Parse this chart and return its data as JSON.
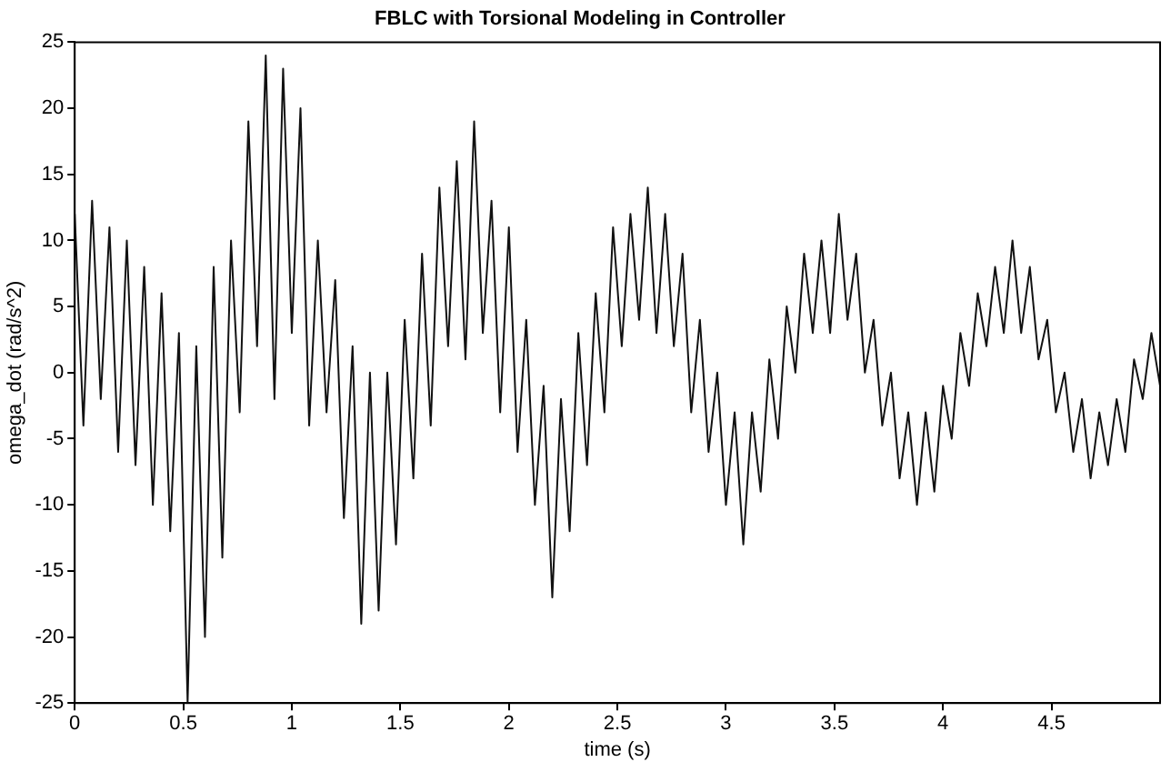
{
  "chart_data": {
    "type": "line",
    "title": "FBLC with Torsional Modeling in Controller",
    "xlabel": "time (s)",
    "ylabel": "omega_dot (rad/s^2)",
    "x": [
      0,
      0.04,
      0.08,
      0.12,
      0.16,
      0.2,
      0.24,
      0.28,
      0.32,
      0.36,
      0.4,
      0.44,
      0.48,
      0.52,
      0.56,
      0.6,
      0.64,
      0.68,
      0.72,
      0.76,
      0.8,
      0.84,
      0.88,
      0.92,
      0.96,
      1,
      1.04,
      1.08,
      1.12,
      1.16,
      1.2,
      1.24,
      1.28,
      1.32,
      1.36,
      1.4,
      1.44,
      1.48,
      1.52,
      1.56,
      1.6,
      1.64,
      1.68,
      1.72,
      1.76,
      1.8,
      1.84,
      1.88,
      1.92,
      1.96,
      2,
      2.04,
      2.08,
      2.12,
      2.16,
      2.2,
      2.24,
      2.28,
      2.32,
      2.36,
      2.4,
      2.44,
      2.48,
      2.52,
      2.56,
      2.6,
      2.64,
      2.68,
      2.72,
      2.76,
      2.8,
      2.84,
      2.88,
      2.92,
      2.96,
      3,
      3.04,
      3.08,
      3.12,
      3.16,
      3.2,
      3.24,
      3.28,
      3.32,
      3.36,
      3.4,
      3.44,
      3.48,
      3.52,
      3.56,
      3.6,
      3.64,
      3.68,
      3.72,
      3.76,
      3.8,
      3.84,
      3.88,
      3.92,
      3.96,
      4,
      4.04,
      4.08,
      4.12,
      4.16,
      4.2,
      4.24,
      4.28,
      4.32,
      4.36,
      4.4,
      4.44,
      4.48,
      4.52,
      4.56,
      4.6,
      4.64,
      4.68,
      4.72,
      4.76,
      4.8,
      4.84,
      4.88,
      4.92,
      4.96,
      5
    ],
    "series": [
      {
        "color": "#111111",
        "values": [
          12,
          -4,
          13,
          -2,
          11,
          -6,
          10,
          -7,
          8,
          -10,
          6,
          -12,
          3,
          -25,
          2,
          -20,
          8,
          -14,
          10,
          -3,
          19,
          2,
          24,
          -2,
          23,
          3,
          20,
          -4,
          10,
          -3,
          7,
          -11,
          2,
          -19,
          0,
          -18,
          0,
          -13,
          4,
          -8,
          9,
          -4,
          14,
          2,
          16,
          1,
          19,
          3,
          13,
          -3,
          11,
          -6,
          4,
          -10,
          -1,
          -17,
          -2,
          -12,
          3,
          -7,
          6,
          -3,
          11,
          2,
          12,
          4,
          14,
          3,
          12,
          2,
          9,
          -3,
          4,
          -6,
          0,
          -10,
          -3,
          -13,
          -3,
          -9,
          1,
          -5,
          5,
          0,
          9,
          3,
          10,
          3,
          12,
          4,
          9,
          0,
          4,
          -4,
          0,
          -8,
          -3,
          -10,
          -3,
          -9,
          -1,
          -5,
          3,
          -1,
          6,
          2,
          8,
          3,
          10,
          3,
          8,
          1,
          4,
          -3,
          0,
          -6,
          -2,
          -8,
          -3,
          -7,
          -2,
          -6,
          1,
          -2,
          3,
          -1
        ]
      }
    ],
    "xlim": [
      0,
      5
    ],
    "xticks": [
      0,
      0.5,
      1,
      1.5,
      2,
      2.5,
      3,
      3.5,
      4,
      4.5
    ],
    "ylim": [
      -25,
      25
    ],
    "yticks": [
      -25,
      -20,
      -15,
      -10,
      -5,
      0,
      5,
      10,
      15,
      20,
      25
    ],
    "grid": false,
    "legend": false,
    "marker": "none",
    "line_style": "solid"
  }
}
